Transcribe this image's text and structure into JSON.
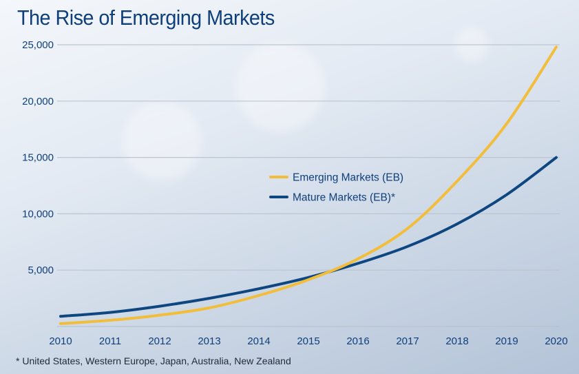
{
  "title": "The Rise of Emerging Markets",
  "footnote": "* United States, Western Europe, Japan, Australia, New Zealand",
  "colors": {
    "emerging": "#f3bd3c",
    "mature": "#0e4680",
    "text": "#0f3f7a"
  },
  "chart_data": {
    "type": "line",
    "title": "The Rise of Emerging Markets",
    "xlabel": "",
    "ylabel": "",
    "x": [
      2010,
      2011,
      2012,
      2013,
      2014,
      2015,
      2016,
      2017,
      2018,
      2019,
      2020
    ],
    "x_tick_labels": [
      "2010",
      "2011",
      "2012",
      "2013",
      "2014",
      "2015",
      "2016",
      "2017",
      "2018",
      "2019",
      "2020"
    ],
    "ylim": [
      0,
      25000
    ],
    "y_ticks": [
      5000,
      10000,
      15000,
      20000,
      25000
    ],
    "y_tick_labels": [
      "5,000",
      "10,000",
      "15,000",
      "20,000",
      "25,000"
    ],
    "grid": true,
    "legend_position": "center-right",
    "series": [
      {
        "name": "Emerging Markets (EB)",
        "color": "#f3bd3c",
        "values": [
          250,
          550,
          1000,
          1650,
          2750,
          4150,
          6000,
          8700,
          12900,
          18000,
          24800
        ]
      },
      {
        "name": "Mature Markets (EB)*",
        "color": "#0e4680",
        "values": [
          900,
          1250,
          1800,
          2500,
          3350,
          4350,
          5600,
          7100,
          9100,
          11700,
          15000
        ]
      }
    ]
  }
}
